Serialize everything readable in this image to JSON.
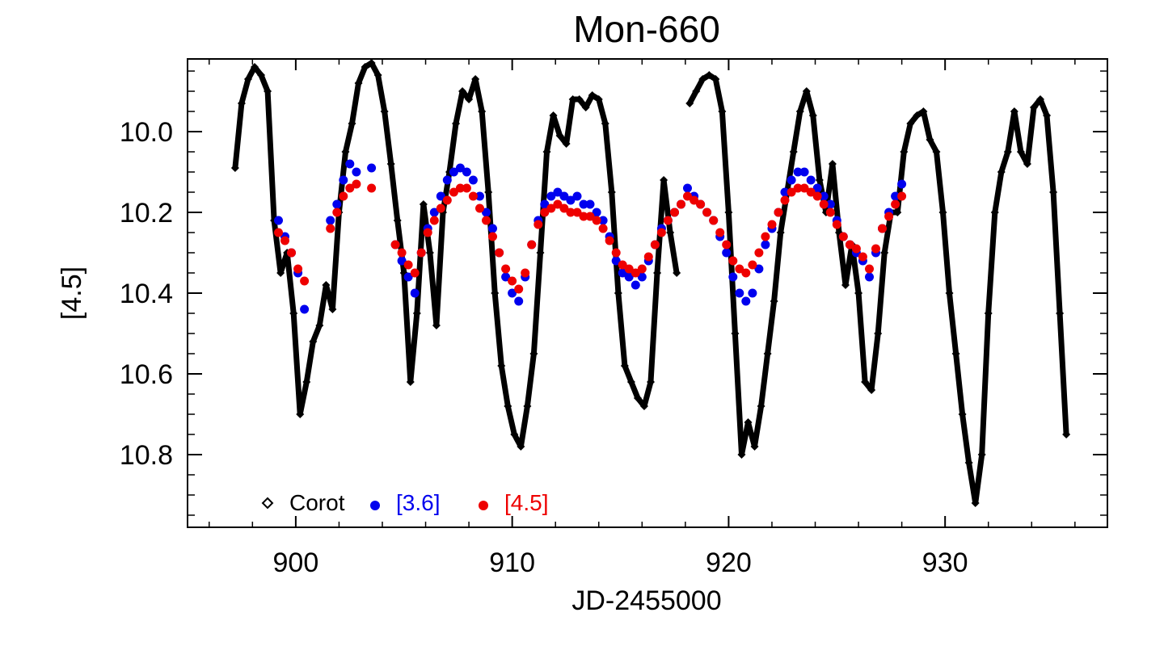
{
  "chart_data": {
    "type": "scatter",
    "title": "Mon-660",
    "xlabel": "JD-2455000",
    "ylabel": "[4.5]",
    "xlim": [
      895,
      937.5
    ],
    "ylim": [
      10.98,
      9.82
    ],
    "y_inverted": true,
    "x_ticks": [
      900,
      910,
      920,
      930
    ],
    "x_tick_labels": [
      "900",
      "910",
      "920",
      "930"
    ],
    "y_ticks": [
      10.0,
      10.2,
      10.4,
      10.6,
      10.8
    ],
    "y_tick_labels": [
      "10.0",
      "10.2",
      "10.4",
      "10.6",
      "10.8"
    ],
    "legend": {
      "placement": "bottom-left",
      "entries": [
        {
          "label": "Corot",
          "marker": "diamond-open",
          "color": "#000000"
        },
        {
          "label": "[3.6]",
          "marker": "circle-filled",
          "color": "#0000ee"
        },
        {
          "label": "[4.5]",
          "marker": "circle-filled",
          "color": "#ee0000"
        }
      ]
    },
    "series": [
      {
        "name": "Corot",
        "color": "#000000",
        "marker": "diamond",
        "x": [
          897.2,
          897.5,
          897.8,
          898.1,
          898.4,
          898.7,
          899.0,
          899.3,
          899.6,
          899.9,
          900.2,
          900.5,
          900.8,
          901.1,
          901.4,
          901.7,
          902.0,
          902.3,
          902.6,
          902.9,
          903.2,
          903.5,
          903.8,
          904.1,
          904.4,
          904.7,
          905.0,
          905.3,
          905.6,
          905.9,
          906.2,
          906.5,
          906.8,
          907.1,
          907.4,
          907.7,
          908.0,
          908.3,
          908.6,
          908.9,
          909.2,
          909.5,
          909.8,
          910.1,
          910.4,
          910.7,
          911.0,
          911.3,
          911.6,
          911.9,
          912.2,
          912.5,
          912.8,
          913.1,
          913.4,
          913.7,
          914.0,
          914.3,
          914.6,
          914.9,
          915.2,
          915.5,
          915.8,
          916.1,
          916.4,
          916.7,
          917.0,
          917.3,
          917.6,
          918.2,
          918.5,
          918.8,
          919.1,
          919.4,
          919.7,
          920.0,
          920.3,
          920.6,
          920.9,
          921.2,
          921.5,
          921.8,
          922.1,
          922.4,
          922.7,
          923.0,
          923.3,
          923.6,
          923.9,
          924.2,
          924.5,
          924.8,
          925.1,
          925.4,
          925.7,
          926.0,
          926.3,
          926.6,
          926.9,
          927.2,
          927.5,
          927.8,
          928.1,
          928.4,
          928.7,
          929.0,
          929.3,
          929.6,
          929.9,
          930.2,
          930.5,
          930.8,
          931.1,
          931.4,
          931.7,
          932.0,
          932.3,
          932.6,
          932.9,
          933.2,
          933.5,
          933.8,
          934.1,
          934.4,
          934.7,
          935.0,
          935.3,
          935.6
        ],
        "y": [
          10.09,
          9.93,
          9.87,
          9.84,
          9.86,
          9.9,
          10.22,
          10.35,
          10.3,
          10.45,
          10.7,
          10.62,
          10.52,
          10.48,
          10.38,
          10.44,
          10.2,
          10.05,
          9.98,
          9.88,
          9.84,
          9.83,
          9.86,
          9.95,
          10.08,
          10.22,
          10.35,
          10.62,
          10.45,
          10.18,
          10.3,
          10.48,
          10.2,
          10.1,
          9.98,
          9.9,
          9.92,
          9.87,
          9.95,
          10.15,
          10.4,
          10.58,
          10.68,
          10.75,
          10.78,
          10.68,
          10.55,
          10.3,
          10.05,
          9.96,
          10.01,
          10.03,
          9.92,
          9.92,
          9.94,
          9.91,
          9.92,
          9.98,
          10.15,
          10.4,
          10.58,
          10.62,
          10.66,
          10.68,
          10.62,
          10.35,
          10.12,
          10.25,
          10.35,
          9.93,
          9.9,
          9.87,
          9.86,
          9.87,
          9.95,
          10.2,
          10.5,
          10.8,
          10.72,
          10.78,
          10.68,
          10.55,
          10.42,
          10.25,
          10.15,
          10.05,
          9.95,
          9.9,
          9.96,
          10.12,
          10.2,
          10.08,
          10.25,
          10.38,
          10.28,
          10.4,
          10.62,
          10.64,
          10.5,
          10.3,
          10.2,
          10.2,
          10.05,
          9.98,
          9.96,
          9.95,
          10.02,
          10.05,
          10.2,
          10.4,
          10.55,
          10.7,
          10.82,
          10.92,
          10.8,
          10.45,
          10.2,
          10.1,
          10.05,
          9.95,
          10.05,
          10.08,
          9.94,
          9.92,
          9.96,
          10.15,
          10.45,
          10.75
        ]
      },
      {
        "name": "[3.6]",
        "color": "#0000ee",
        "marker": "circle",
        "x": [
          899.2,
          899.5,
          899.8,
          900.1,
          900.4,
          901.6,
          901.9,
          902.2,
          902.5,
          902.8,
          903.5,
          904.6,
          904.9,
          905.2,
          905.5,
          905.8,
          906.1,
          906.4,
          906.7,
          907.0,
          907.3,
          907.6,
          907.9,
          908.2,
          908.5,
          908.8,
          909.1,
          909.4,
          909.7,
          910.0,
          910.3,
          910.6,
          910.9,
          911.2,
          911.5,
          911.8,
          912.1,
          912.4,
          912.7,
          913.0,
          913.3,
          913.6,
          913.9,
          914.2,
          914.5,
          914.8,
          915.1,
          915.4,
          915.7,
          916.0,
          916.3,
          916.6,
          916.9,
          917.2,
          917.5,
          917.8,
          918.1,
          918.4,
          918.7,
          919.0,
          919.3,
          919.6,
          919.9,
          920.2,
          920.5,
          920.8,
          921.1,
          921.4,
          921.7,
          922.0,
          922.3,
          922.6,
          922.9,
          923.2,
          923.5,
          923.8,
          924.1,
          924.4,
          924.7,
          925.0,
          925.3,
          925.6,
          925.9,
          926.2,
          926.5,
          926.8,
          927.1,
          927.4,
          927.7,
          928.0
        ],
        "y": [
          10.22,
          10.26,
          10.3,
          10.35,
          10.44,
          10.22,
          10.18,
          10.12,
          10.08,
          10.1,
          10.09,
          10.28,
          10.32,
          10.36,
          10.4,
          10.3,
          10.24,
          10.2,
          10.16,
          10.12,
          10.1,
          10.09,
          10.1,
          10.12,
          10.16,
          10.2,
          10.24,
          10.3,
          10.36,
          10.4,
          10.42,
          10.36,
          10.28,
          10.22,
          10.18,
          10.16,
          10.15,
          10.16,
          10.17,
          10.16,
          10.18,
          10.18,
          10.2,
          10.22,
          10.26,
          10.32,
          10.35,
          10.36,
          10.38,
          10.36,
          10.32,
          10.28,
          10.24,
          10.22,
          10.2,
          10.18,
          10.14,
          10.16,
          10.18,
          10.2,
          10.22,
          10.26,
          10.3,
          10.36,
          10.4,
          10.42,
          10.4,
          10.34,
          10.28,
          10.24,
          10.2,
          10.15,
          10.12,
          10.1,
          10.1,
          10.12,
          10.14,
          10.16,
          10.18,
          10.22,
          10.26,
          10.28,
          10.3,
          10.32,
          10.36,
          10.3,
          10.24,
          10.2,
          10.16,
          10.13
        ]
      },
      {
        "name": "[4.5]",
        "color": "#ee0000",
        "marker": "circle",
        "x": [
          899.2,
          899.5,
          899.8,
          900.1,
          900.4,
          901.6,
          901.9,
          902.2,
          902.5,
          902.8,
          903.5,
          904.6,
          904.9,
          905.2,
          905.5,
          905.8,
          906.1,
          906.4,
          906.7,
          907.0,
          907.3,
          907.6,
          907.9,
          908.2,
          908.5,
          908.8,
          909.1,
          909.4,
          909.7,
          910.0,
          910.3,
          910.6,
          910.9,
          911.2,
          911.5,
          911.8,
          912.1,
          912.4,
          912.7,
          913.0,
          913.3,
          913.6,
          913.9,
          914.2,
          914.5,
          914.8,
          915.1,
          915.4,
          915.7,
          916.0,
          916.3,
          916.6,
          916.9,
          917.2,
          917.5,
          917.8,
          918.1,
          918.4,
          918.7,
          919.0,
          919.3,
          919.6,
          919.9,
          920.2,
          920.5,
          920.8,
          921.1,
          921.4,
          921.7,
          922.0,
          922.3,
          922.6,
          922.9,
          923.2,
          923.5,
          923.8,
          924.1,
          924.4,
          924.7,
          925.0,
          925.3,
          925.6,
          925.9,
          926.2,
          926.5,
          926.8,
          927.1,
          927.4,
          927.7,
          928.0
        ],
        "y": [
          10.25,
          10.27,
          10.3,
          10.34,
          10.37,
          10.24,
          10.2,
          10.16,
          10.14,
          10.13,
          10.14,
          10.28,
          10.3,
          10.33,
          10.35,
          10.3,
          10.25,
          10.22,
          10.19,
          10.17,
          10.15,
          10.14,
          10.14,
          10.16,
          10.19,
          10.22,
          10.26,
          10.3,
          10.34,
          10.37,
          10.39,
          10.35,
          10.28,
          10.23,
          10.2,
          10.19,
          10.18,
          10.19,
          10.2,
          10.2,
          10.21,
          10.21,
          10.22,
          10.24,
          10.27,
          10.3,
          10.33,
          10.34,
          10.35,
          10.34,
          10.31,
          10.28,
          10.25,
          10.22,
          10.2,
          10.18,
          10.16,
          10.17,
          10.18,
          10.2,
          10.22,
          10.25,
          10.28,
          10.32,
          10.34,
          10.35,
          10.33,
          10.3,
          10.26,
          10.23,
          10.2,
          10.17,
          10.15,
          10.14,
          10.14,
          10.15,
          10.16,
          10.18,
          10.2,
          10.23,
          10.26,
          10.28,
          10.29,
          10.31,
          10.34,
          10.29,
          10.24,
          10.21,
          10.18,
          10.16
        ]
      }
    ]
  }
}
